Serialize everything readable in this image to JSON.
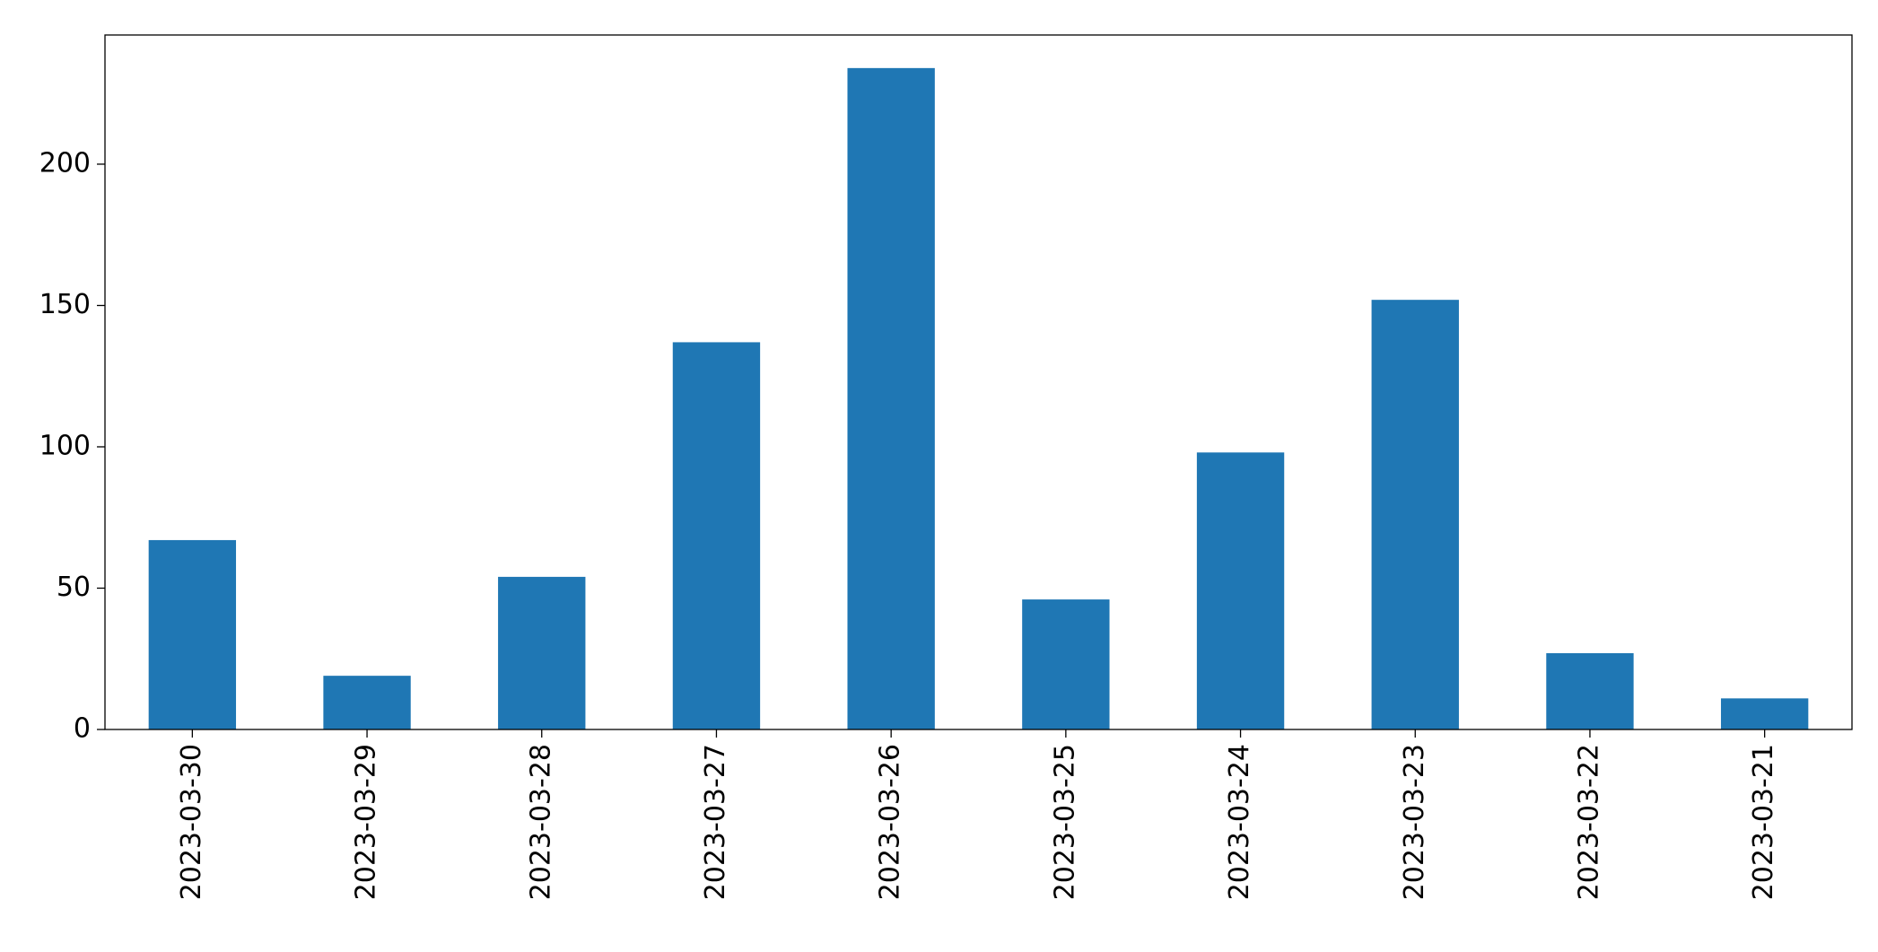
{
  "chart_data": {
    "type": "bar",
    "categories": [
      "2023-03-30",
      "2023-03-29",
      "2023-03-28",
      "2023-03-27",
      "2023-03-26",
      "2023-03-25",
      "2023-03-24",
      "2023-03-23",
      "2023-03-22",
      "2023-03-21"
    ],
    "values": [
      67,
      19,
      54,
      137,
      234,
      46,
      98,
      152,
      27,
      11
    ],
    "color": "#1f77b4",
    "ylim": [
      0,
      245.7
    ],
    "yticks": [
      0,
      50,
      100,
      150,
      200
    ],
    "grid": false
  }
}
